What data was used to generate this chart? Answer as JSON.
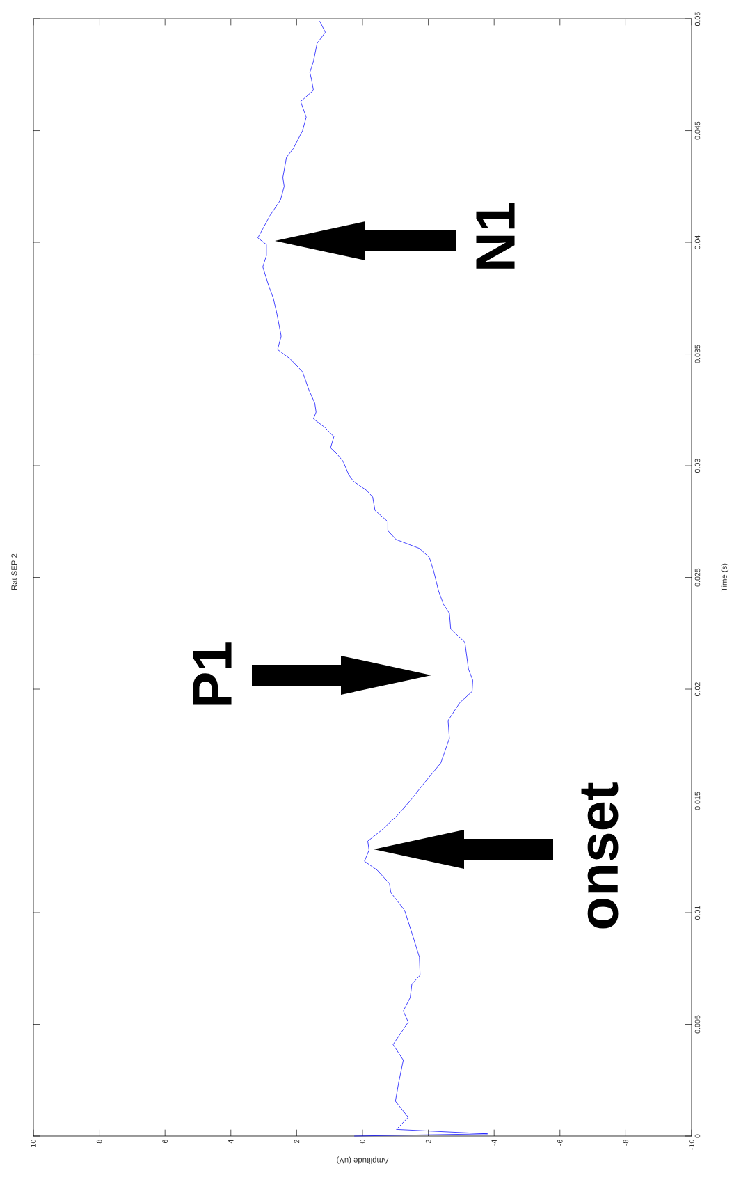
{
  "chart_data": {
    "type": "line",
    "title": "Rat SEP 2",
    "xlabel": "Amplitude (uV)",
    "ylabel": "Time (s)",
    "xlim": [
      10,
      -10
    ],
    "ylim": [
      0,
      0.05
    ],
    "xticks": [
      10,
      8,
      6,
      4,
      2,
      0,
      -2,
      -4,
      -6,
      -8,
      -10
    ],
    "yticks": [
      0,
      0.005,
      0.01,
      0.015,
      0.02,
      0.025,
      0.03,
      0.035,
      0.04,
      0.045,
      0.05
    ],
    "series": [
      {
        "color": "#0000ff",
        "x": [
          0.25,
          -3.8,
          -1.03,
          -1.39,
          -1.0,
          -1.1,
          -1.24,
          -0.93,
          -1.39,
          -1.24,
          -1.45,
          -1.5,
          -1.75,
          -1.73,
          -1.52,
          -1.28,
          -0.86,
          -0.82,
          -0.45,
          -0.06,
          -0.2,
          -0.16,
          -0.59,
          -1.09,
          -1.5,
          -1.82,
          -2.38,
          -2.64,
          -2.6,
          -2.96,
          -3.33,
          -3.35,
          -3.22,
          -3.11,
          -2.68,
          -2.64,
          -2.46,
          -2.31,
          -2.16,
          -2.03,
          -1.73,
          -1.02,
          -0.77,
          -0.77,
          -0.38,
          -0.31,
          -0.12,
          0.27,
          0.42,
          0.59,
          0.76,
          0.97,
          0.87,
          1.13,
          1.49,
          1.41,
          1.45,
          1.63,
          1.82,
          2.21,
          2.58,
          2.47,
          2.6,
          2.71,
          2.86,
          3.03,
          2.92,
          2.92,
          3.18,
          3.03,
          2.81,
          2.49,
          2.38,
          2.42,
          2.31,
          2.1,
          1.82,
          1.71,
          1.88,
          1.49,
          1.55,
          1.6,
          1.49,
          1.38,
          1.13,
          1.3
        ],
        "values": [
          0,
          0.0001,
          0.0003,
          0.00084,
          0.00156,
          0.0024,
          0.0034,
          0.0041,
          0.0051,
          0.0056,
          0.0062,
          0.0068,
          0.0072,
          0.008,
          0.009,
          0.0101,
          0.0109,
          0.0113,
          0.0119,
          0.0123,
          0.0128,
          0.0132,
          0.0137,
          0.0144,
          0.0151,
          0.0157,
          0.0167,
          0.0178,
          0.0186,
          0.0194,
          0.0199,
          0.0204,
          0.0209,
          0.0221,
          0.0227,
          0.0234,
          0.0238,
          0.0244,
          0.0253,
          0.0259,
          0.0263,
          0.0267,
          0.0271,
          0.0275,
          0.028,
          0.0286,
          0.0289,
          0.0293,
          0.0296,
          0.0302,
          0.0305,
          0.0308,
          0.0313,
          0.0317,
          0.0321,
          0.0324,
          0.0328,
          0.0334,
          0.0342,
          0.0348,
          0.0352,
          0.0358,
          0.0368,
          0.0375,
          0.0381,
          0.0389,
          0.0394,
          0.0399,
          0.0402,
          0.0406,
          0.0412,
          0.0419,
          0.0425,
          0.0429,
          0.0438,
          0.0442,
          0.045,
          0.0456,
          0.0463,
          0.0468,
          0.0473,
          0.0476,
          0.0481,
          0.0489,
          0.0494,
          0.0499
        ]
      }
    ],
    "annotations": [
      "onset",
      "P1",
      "N1"
    ]
  }
}
